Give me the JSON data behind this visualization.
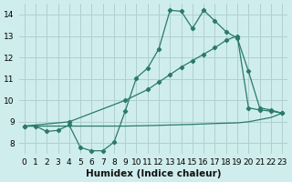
{
  "xlabel": "Humidex (Indice chaleur)",
  "ylabel": "",
  "xlim": [
    -0.5,
    23.5
  ],
  "ylim": [
    7.5,
    14.5
  ],
  "yticks": [
    8,
    9,
    10,
    11,
    12,
    13,
    14
  ],
  "xticks": [
    0,
    1,
    2,
    3,
    4,
    5,
    6,
    7,
    8,
    9,
    10,
    11,
    12,
    13,
    14,
    15,
    16,
    17,
    18,
    19,
    20,
    21,
    22,
    23
  ],
  "bg_color": "#d0eded",
  "grid_color": "#b0d0d0",
  "line_color": "#2a7a6a",
  "line1_x": [
    0,
    1,
    2,
    3,
    4,
    5,
    6,
    7,
    8,
    9,
    10,
    11,
    12,
    13,
    14,
    15,
    16,
    17,
    18,
    19,
    20,
    21,
    22,
    23
  ],
  "line1_y": [
    8.8,
    8.8,
    8.55,
    8.6,
    8.85,
    7.8,
    7.65,
    7.65,
    8.05,
    9.5,
    11.05,
    11.5,
    12.4,
    14.2,
    14.15,
    13.35,
    14.2,
    13.7,
    13.2,
    12.9,
    11.35,
    9.65,
    9.55,
    9.4
  ],
  "line2_x": [
    0,
    4,
    9,
    11,
    12,
    13,
    14,
    15,
    16,
    17,
    18,
    19,
    20,
    21,
    22,
    23
  ],
  "line2_y": [
    8.8,
    9.0,
    10.0,
    10.5,
    10.85,
    11.2,
    11.55,
    11.85,
    12.15,
    12.45,
    12.8,
    13.0,
    9.65,
    9.55,
    9.5,
    9.4
  ],
  "line3_x": [
    0,
    4,
    9,
    11,
    13,
    15,
    17,
    19,
    20,
    21,
    22,
    23
  ],
  "line3_y": [
    8.8,
    8.8,
    8.8,
    8.82,
    8.85,
    8.88,
    8.92,
    8.95,
    9.0,
    9.1,
    9.2,
    9.4
  ],
  "tick_fontsize": 6.5,
  "label_fontsize": 7.5
}
